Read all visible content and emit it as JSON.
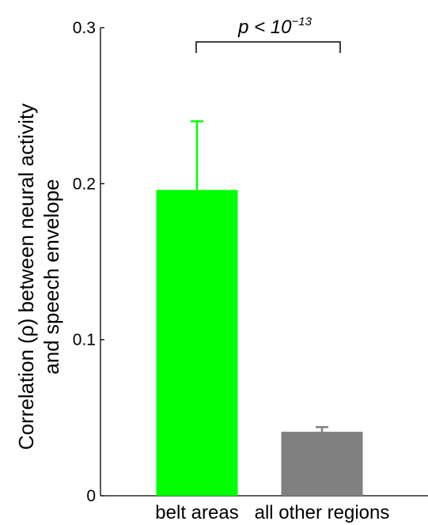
{
  "chart_data": {
    "type": "bar",
    "categories": [
      "belt areas",
      "all other regions"
    ],
    "values": [
      0.196,
      0.041
    ],
    "errors": [
      0.044,
      0.003
    ],
    "colors": [
      "#00ff00",
      "#808080"
    ],
    "ylabel_line1": "Correlation (ρ) between neural activity",
    "ylabel_line2": "and speech envelope",
    "ylim": [
      0,
      0.3
    ],
    "yticks": [
      "0",
      "0.1",
      "0.2",
      "0.3"
    ],
    "grid": false,
    "significance": {
      "text": "p < 10",
      "exponent": "−13",
      "between": [
        0,
        1
      ]
    }
  }
}
